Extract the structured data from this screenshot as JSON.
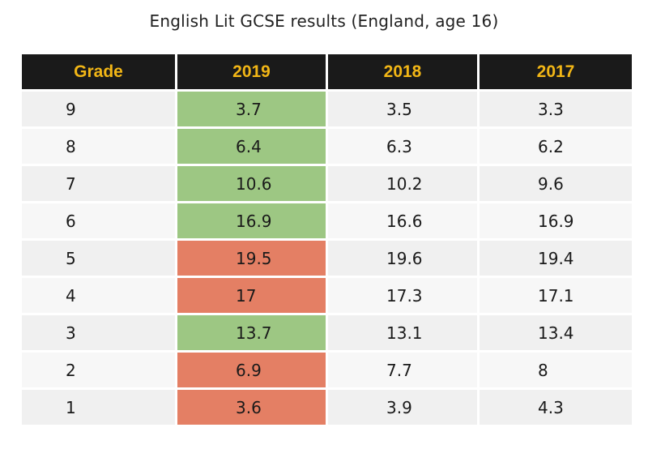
{
  "chart_data": {
    "type": "table",
    "title": "English Lit GCSE results (England, age 16)",
    "columns": [
      "Grade",
      "2019",
      "2018",
      "2017"
    ],
    "rows": [
      {
        "grade": "9",
        "y2019": "3.7",
        "y2018": "3.5",
        "y2017": "3.3",
        "change": "up"
      },
      {
        "grade": "8",
        "y2019": "6.4",
        "y2018": "6.3",
        "y2017": "6.2",
        "change": "up"
      },
      {
        "grade": "7",
        "y2019": "10.6",
        "y2018": "10.2",
        "y2017": "9.6",
        "change": "up"
      },
      {
        "grade": "6",
        "y2019": "16.9",
        "y2018": "16.6",
        "y2017": "16.9",
        "change": "up"
      },
      {
        "grade": "5",
        "y2019": "19.5",
        "y2018": "19.6",
        "y2017": "19.4",
        "change": "down"
      },
      {
        "grade": "4",
        "y2019": "17",
        "y2018": "17.3",
        "y2017": "17.1",
        "change": "down"
      },
      {
        "grade": "3",
        "y2019": "13.7",
        "y2018": "13.1",
        "y2017": "13.4",
        "change": "up"
      },
      {
        "grade": "2",
        "y2019": "6.9",
        "y2018": "7.7",
        "y2017": "8",
        "change": "down"
      },
      {
        "grade": "1",
        "y2019": "3.6",
        "y2018": "3.9",
        "y2017": "4.3",
        "change": "down"
      }
    ],
    "colors": {
      "header_bg": "#1a1a1a",
      "header_text": "#f2b616",
      "increase": "#9dc783",
      "decrease": "#e47f64"
    }
  }
}
